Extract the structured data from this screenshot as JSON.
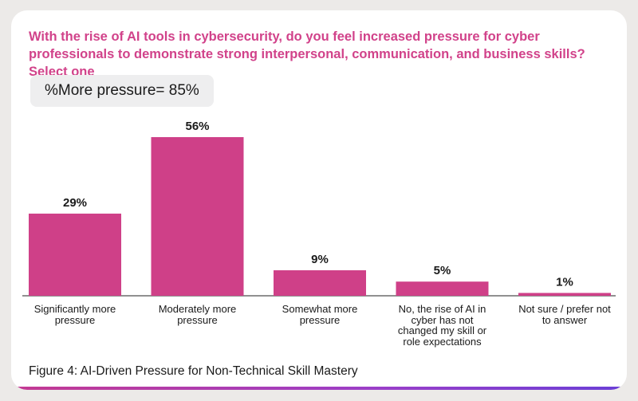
{
  "question": "With the rise of AI tools in cybersecurity, do you feel increased pressure for cyber professionals to demonstrate strong interpersonal, communication, and business skills? Select one",
  "summary": "%More pressure= 85%",
  "caption": "Figure 4: AI-Driven Pressure for Non-Technical Skill Mastery",
  "colors": {
    "bar": "#cf4088",
    "question": "#d1428a",
    "accent_start": "#c43a92",
    "accent_end": "#6a3fd6"
  },
  "chart_data": {
    "type": "bar",
    "title": "With the rise of AI tools in cybersecurity, do you feel increased pressure for cyber professionals to demonstrate strong interpersonal, communication, and business skills? Select one",
    "categories": [
      "Significantly more pressure",
      "Moderately more pressure",
      "Somewhat more pressure",
      "No, the rise of AI in cyber has not changed my skill or role expectations",
      "Not sure / prefer not to answer"
    ],
    "values": [
      29,
      56,
      9,
      5,
      1
    ],
    "value_labels": [
      "29%",
      "56%",
      "9%",
      "5%",
      "1%"
    ],
    "xlabel": "",
    "ylabel": "",
    "ylim": [
      0,
      56
    ],
    "grid": false,
    "legend": "none"
  }
}
